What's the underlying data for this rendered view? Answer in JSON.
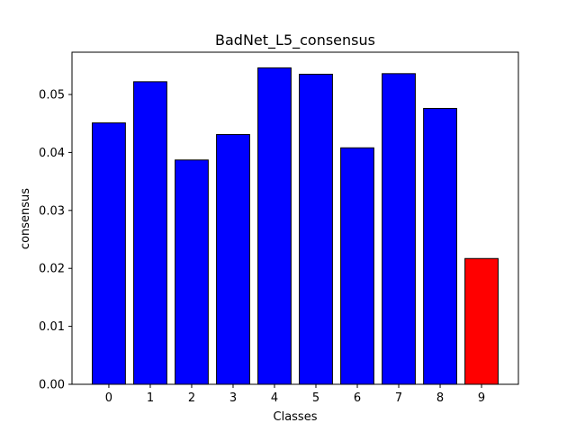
{
  "chart_data": {
    "type": "bar",
    "title": "BadNet_L5_consensus",
    "xlabel": "Classes",
    "ylabel": "consensus",
    "categories": [
      "0",
      "1",
      "2",
      "3",
      "4",
      "5",
      "6",
      "7",
      "8",
      "9"
    ],
    "values": [
      0.0451,
      0.0522,
      0.0387,
      0.0431,
      0.0546,
      0.0535,
      0.0408,
      0.0536,
      0.0476,
      0.0217
    ],
    "bar_colors": [
      "#0000ff",
      "#0000ff",
      "#0000ff",
      "#0000ff",
      "#0000ff",
      "#0000ff",
      "#0000ff",
      "#0000ff",
      "#0000ff",
      "#ff0000"
    ],
    "edge_color": "#000000",
    "ylim": [
      0,
      0.0573
    ],
    "yticks": [
      "0.00",
      "0.01",
      "0.02",
      "0.03",
      "0.04",
      "0.05"
    ],
    "grid": false,
    "legend": false
  }
}
